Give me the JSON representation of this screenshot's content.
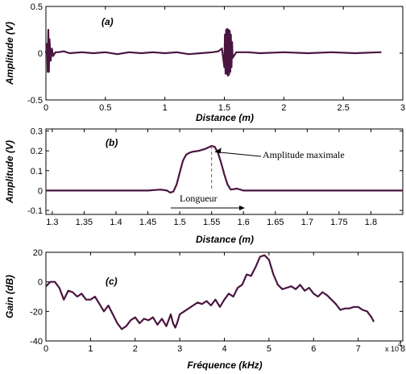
{
  "chart_data": [
    {
      "type": "line",
      "panel_label": "(a)",
      "xlabel": "Distance (m)",
      "ylabel": "Amplitude (V)",
      "xlim": [
        0,
        3
      ],
      "ylim": [
        -0.5,
        0.5
      ],
      "xticks": [
        "0",
        "0.5",
        "1",
        "1.5",
        "2",
        "2.5",
        "3"
      ],
      "yticks": [
        "-0.5",
        "0",
        "0.5"
      ],
      "grid": false,
      "line_color": "#4a1540",
      "series": [
        {
          "x": [
            0,
            0.01,
            0.015,
            0.02,
            0.025,
            0.03,
            0.04,
            0.05,
            0.06,
            0.08,
            0.1,
            0.15,
            0.2,
            0.3,
            0.4,
            0.5,
            0.6,
            0.7,
            0.8,
            0.9,
            1.0,
            1.1,
            1.2,
            1.3,
            1.4,
            1.45,
            1.48,
            1.5,
            1.505,
            1.51,
            1.515,
            1.52,
            1.525,
            1.53,
            1.535,
            1.54,
            1.545,
            1.55,
            1.555,
            1.56,
            1.565,
            1.57,
            1.6,
            1.7,
            1.8,
            2.0,
            2.2,
            2.4,
            2.6,
            2.8,
            2.82
          ],
          "y": [
            0,
            0.1,
            -0.2,
            0.25,
            -0.2,
            0.15,
            -0.08,
            0.05,
            -0.03,
            0.01,
            0.01,
            0.02,
            0,
            0.01,
            0,
            0.01,
            -0.01,
            0.01,
            0,
            0.01,
            0,
            0.01,
            -0.01,
            0,
            0.01,
            0.02,
            0.05,
            -0.15,
            0.2,
            -0.22,
            0.25,
            -0.22,
            0.26,
            -0.24,
            0.25,
            -0.23,
            0.24,
            -0.2,
            0.2,
            -0.15,
            0.12,
            -0.05,
            0.01,
            0.01,
            0,
            0.01,
            0,
            0.01,
            0,
            0.01,
            0.01
          ]
        }
      ]
    },
    {
      "type": "line",
      "panel_label": "(b)",
      "xlabel": "Distance (m)",
      "ylabel": "Amplitude (V)",
      "xlim": [
        1.29,
        1.85
      ],
      "ylim": [
        -0.12,
        0.31
      ],
      "xticks": [
        "1.3",
        "1.35",
        "1.4",
        "1.45",
        "1.5",
        "1.55",
        "1.6",
        "1.65",
        "1.7",
        "1.75",
        "1.8"
      ],
      "yticks": [
        "-0.1",
        "0",
        "0.1",
        "0.2",
        "0.3"
      ],
      "grid": false,
      "line_color": "#4a1540",
      "annotations": [
        "Amplitude maximale",
        "Longueur"
      ],
      "series": [
        {
          "x": [
            1.29,
            1.35,
            1.4,
            1.45,
            1.47,
            1.48,
            1.485,
            1.49,
            1.495,
            1.5,
            1.505,
            1.51,
            1.515,
            1.52,
            1.53,
            1.54,
            1.55,
            1.555,
            1.56,
            1.565,
            1.57,
            1.575,
            1.58,
            1.59,
            1.6,
            1.65,
            1.7,
            1.75,
            1.8,
            1.85
          ],
          "y": [
            0,
            0,
            0,
            0,
            0.005,
            0,
            -0.01,
            -0.005,
            0.03,
            0.09,
            0.15,
            0.18,
            0.19,
            0.195,
            0.2,
            0.21,
            0.225,
            0.22,
            0.19,
            0.14,
            0.08,
            0.03,
            0.005,
            0.01,
            0,
            0,
            0,
            0,
            0,
            0
          ]
        }
      ]
    },
    {
      "type": "line",
      "panel_label": "(c)",
      "xlabel": "Fréquence (kHz)",
      "ylabel": "Gain (dB)",
      "xlim": [
        0,
        8
      ],
      "ylim": [
        -40,
        20
      ],
      "xticks": [
        "0",
        "1",
        "2",
        "3",
        "4",
        "5",
        "6",
        "7",
        "8"
      ],
      "yticks": [
        "-40",
        "-20",
        "0",
        "20"
      ],
      "x_multiplier": "x 10",
      "x_multiplier_exponent": "4",
      "grid": false,
      "line_color": "#4a1540",
      "series": [
        {
          "x": [
            0,
            0.1,
            0.2,
            0.3,
            0.4,
            0.5,
            0.6,
            0.7,
            0.8,
            0.9,
            1.0,
            1.1,
            1.2,
            1.3,
            1.4,
            1.5,
            1.6,
            1.7,
            1.8,
            1.9,
            2.0,
            2.1,
            2.2,
            2.3,
            2.4,
            2.5,
            2.6,
            2.7,
            2.8,
            2.85,
            2.9,
            2.95,
            3.0,
            3.1,
            3.2,
            3.3,
            3.4,
            3.5,
            3.6,
            3.7,
            3.8,
            3.9,
            4.0,
            4.1,
            4.2,
            4.3,
            4.4,
            4.5,
            4.6,
            4.7,
            4.8,
            4.9,
            5.0,
            5.1,
            5.2,
            5.3,
            5.4,
            5.5,
            5.6,
            5.7,
            5.8,
            5.9,
            6.0,
            6.1,
            6.2,
            6.3,
            6.4,
            6.5,
            6.6,
            6.7,
            6.8,
            6.9,
            7.0,
            7.1,
            7.2,
            7.3,
            7.35
          ],
          "y": [
            -3,
            0,
            0,
            -4,
            -12,
            -6,
            -7,
            -10,
            -8,
            -12,
            -12,
            -10,
            -15,
            -20,
            -16,
            -22,
            -28,
            -32,
            -30,
            -26,
            -24,
            -28,
            -25,
            -26,
            -24,
            -29,
            -25,
            -30,
            -22,
            -28,
            -31,
            -27,
            -22,
            -20,
            -18,
            -16,
            -14,
            -15,
            -13,
            -16,
            -12,
            -17,
            -12,
            -8,
            -10,
            -4,
            -2,
            5,
            4,
            10,
            17,
            18,
            15,
            5,
            -2,
            -5,
            -4,
            -3,
            -5,
            -2,
            -6,
            -4,
            -8,
            -10,
            -7,
            -9,
            -12,
            -15,
            -19,
            -18,
            -18,
            -17,
            -17,
            -19,
            -20,
            -24,
            -27
          ]
        }
      ]
    }
  ]
}
